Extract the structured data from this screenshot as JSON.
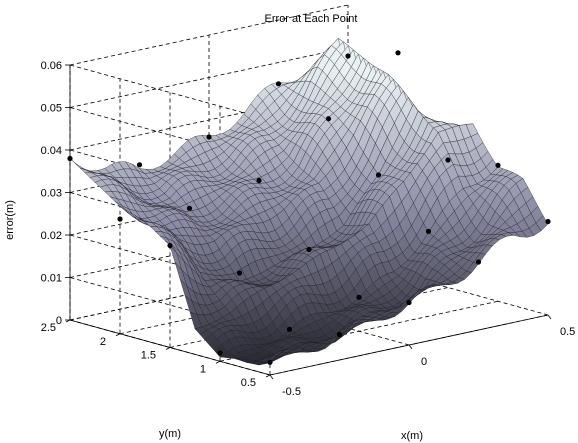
{
  "chart_data": {
    "type": "surface",
    "title": "Error at Each Point",
    "xlabel": "x(m)",
    "ylabel": "y(m)",
    "zlabel": "error(m)",
    "xlim": [
      -0.5,
      0.5
    ],
    "ylim": [
      0.5,
      2.5
    ],
    "zlim": [
      0,
      0.06
    ],
    "x_ticks": [
      "-0.5",
      "0",
      "0.5"
    ],
    "y_ticks": [
      "0.5",
      "1",
      "1.5",
      "2",
      "2.5"
    ],
    "z_ticks": [
      "0",
      "0.01",
      "0.02",
      "0.03",
      "0.04",
      "0.05",
      "0.06"
    ],
    "grid": true,
    "colormap": {
      "low": "#2a2a34",
      "mid": "#8e8ea8",
      "high": "#eaf1f3"
    },
    "surface": {
      "x": [
        -0.5,
        -0.375,
        -0.25,
        -0.125,
        0,
        0.125,
        0.25,
        0.375,
        0.5
      ],
      "y": [
        0.5,
        0.75,
        1.0,
        1.25,
        1.5,
        1.75,
        2.0,
        2.25,
        2.5
      ],
      "z": [
        [
          0.003,
          0.004,
          0.006,
          0.008,
          0.01,
          0.012,
          0.016,
          0.02,
          0.022
        ],
        [
          0.002,
          0.001,
          0.002,
          0.004,
          0.006,
          0.01,
          0.016,
          0.022,
          0.03
        ],
        [
          0.001,
          0.002,
          0.004,
          0.006,
          0.008,
          0.012,
          0.02,
          0.028,
          0.032
        ],
        [
          0.006,
          0.008,
          0.012,
          0.015,
          0.018,
          0.022,
          0.03,
          0.04,
          0.04
        ],
        [
          0.024,
          0.014,
          0.012,
          0.014,
          0.016,
          0.02,
          0.03,
          0.045,
          0.03
        ],
        [
          0.028,
          0.022,
          0.02,
          0.022,
          0.024,
          0.028,
          0.038,
          0.05,
          0.024
        ],
        [
          0.03,
          0.026,
          0.024,
          0.026,
          0.028,
          0.032,
          0.042,
          0.053,
          0.024
        ],
        [
          0.034,
          0.03,
          0.028,
          0.03,
          0.032,
          0.036,
          0.044,
          0.055,
          0.022
        ],
        [
          0.038,
          0.034,
          0.032,
          0.034,
          0.036,
          0.04,
          0.045,
          0.047,
          0.012
        ]
      ]
    },
    "points": [
      {
        "x": -0.5,
        "y": 2.5,
        "z": 0.038
      },
      {
        "x": -0.25,
        "y": 2.5,
        "z": 0.033
      },
      {
        "x": 0,
        "y": 2.5,
        "z": 0.036
      },
      {
        "x": 0.25,
        "y": 2.5,
        "z": 0.045
      },
      {
        "x": 0.5,
        "y": 2.5,
        "z": 0.048
      },
      {
        "x": -0.5,
        "y": 2.0,
        "z": 0.027
      },
      {
        "x": -0.25,
        "y": 2.0,
        "z": 0.026
      },
      {
        "x": 0,
        "y": 2.0,
        "z": 0.029
      },
      {
        "x": 0.25,
        "y": 2.0,
        "z": 0.04
      },
      {
        "x": 0.5,
        "y": 2.0,
        "z": 0.052
      },
      {
        "x": -0.5,
        "y": 1.5,
        "z": 0.024
      },
      {
        "x": -0.25,
        "y": 1.5,
        "z": 0.014
      },
      {
        "x": 0,
        "y": 1.5,
        "z": 0.016
      },
      {
        "x": 0.25,
        "y": 1.5,
        "z": 0.03
      },
      {
        "x": 0.5,
        "y": 1.5,
        "z": 0.03
      },
      {
        "x": -0.5,
        "y": 1.0,
        "z": 0.002
      },
      {
        "x": -0.25,
        "y": 1.0,
        "z": 0.004
      },
      {
        "x": 0,
        "y": 1.0,
        "z": 0.008
      },
      {
        "x": 0.25,
        "y": 1.0,
        "z": 0.02
      },
      {
        "x": 0.5,
        "y": 1.0,
        "z": 0.032
      },
      {
        "x": -0.5,
        "y": 0.5,
        "z": 0.003
      },
      {
        "x": -0.25,
        "y": 0.5,
        "z": 0.006
      },
      {
        "x": 0,
        "y": 0.5,
        "z": 0.01
      },
      {
        "x": 0.25,
        "y": 0.5,
        "z": 0.016
      },
      {
        "x": 0.5,
        "y": 0.5,
        "z": 0.022
      }
    ]
  }
}
